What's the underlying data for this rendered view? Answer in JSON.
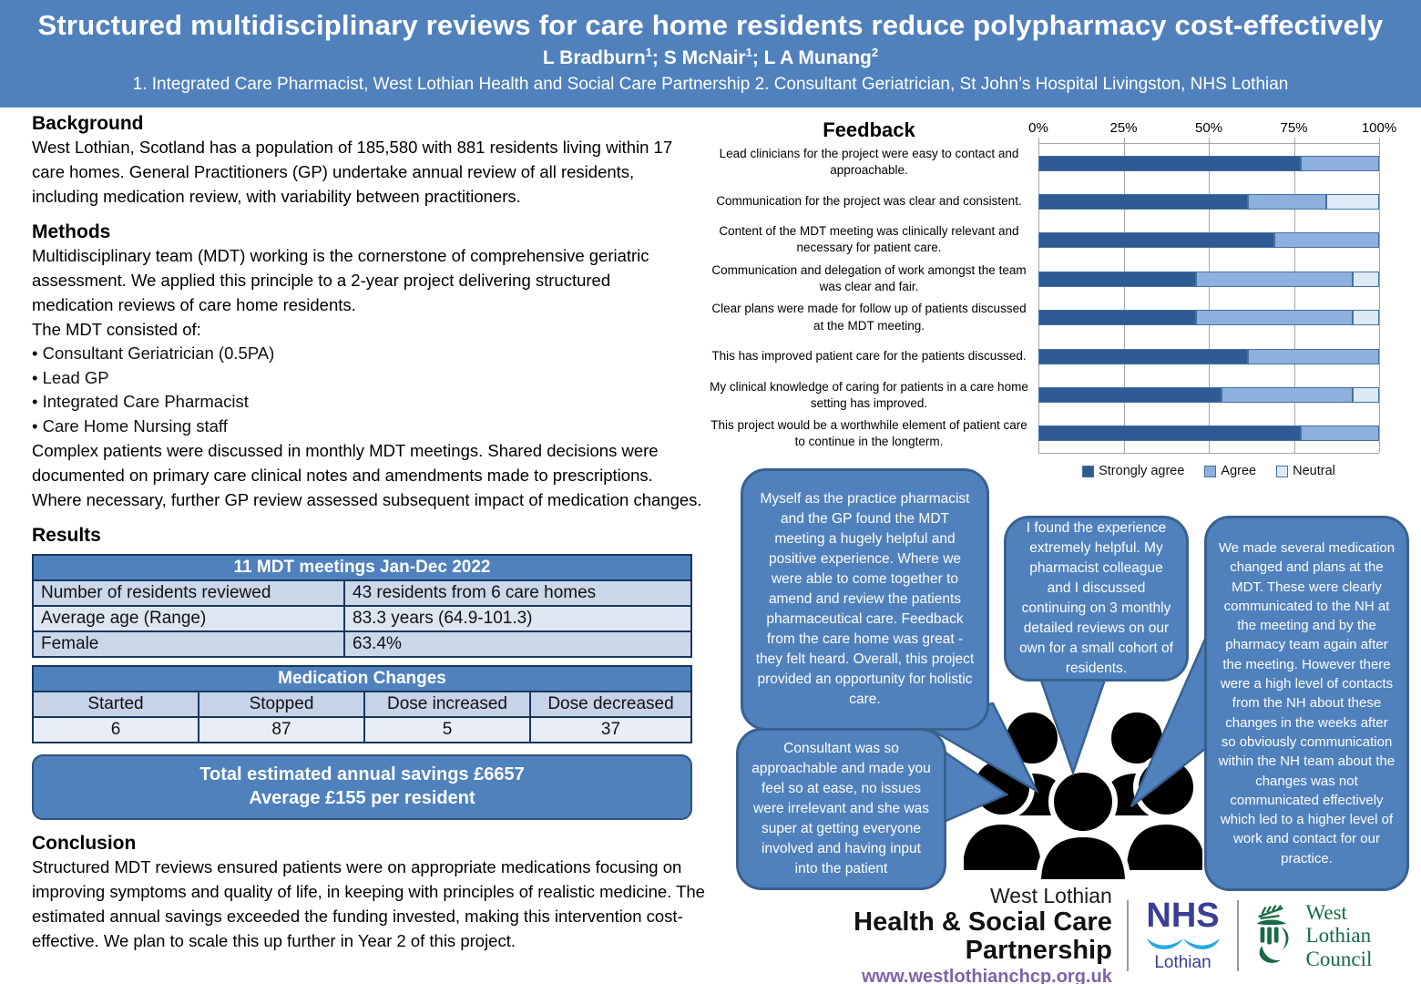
{
  "header": {
    "title": "Structured multidisciplinary reviews for care home residents reduce polypharmacy cost-effectively",
    "authors": [
      {
        "text": "L Bradburn",
        "sup": "1",
        "tail": "; "
      },
      {
        "text": "S McNair",
        "sup": "1",
        "tail": "; "
      },
      {
        "text": "L A Munang",
        "sup": "2",
        "tail": ""
      }
    ],
    "affiliations": "1. Integrated Care Pharmacist, West Lothian Health and Social Care Partnership 2. Consultant Geriatrician, St John’s Hospital Livingston, NHS Lothian"
  },
  "background": {
    "heading": "Background",
    "body": "West Lothian, Scotland has a population of 185,580 with 881 residents living within 17 care homes. General Practitioners (GP) undertake annual review of all residents, including medication review, with variability between practitioners."
  },
  "methods": {
    "heading": "Methods",
    "para1": "Multidisciplinary team (MDT) working is the cornerstone of comprehensive geriatric assessment. We applied this principle to a 2-year project delivering structured medication reviews of care home residents.",
    "list_intro": "The MDT consisted of:",
    "items": [
      "Consultant Geriatrician (0.5PA)",
      "Lead GP",
      "Integrated Care Pharmacist",
      "Care Home Nursing staff"
    ],
    "para2": "Complex patients were discussed in monthly MDT meetings. Shared decisions were documented on primary care clinical notes and amendments made to prescriptions. Where necessary, further GP review assessed subsequent impact of medication changes."
  },
  "results": {
    "heading": "Results",
    "table1": {
      "title": "11 MDT meetings Jan-Dec 2022",
      "rows": [
        [
          "Number of residents reviewed",
          "43 residents from 6 care homes"
        ],
        [
          "Average age (Range)",
          "83.3 years (64.9-101.3)"
        ],
        [
          "Female",
          "63.4%"
        ]
      ]
    },
    "table2": {
      "title": "Medication Changes",
      "columns": [
        "Started",
        "Stopped",
        "Dose increased",
        "Dose decreased"
      ],
      "values": [
        "6",
        "87",
        "5",
        "37"
      ]
    },
    "savings_line1": "Total estimated annual savings £6657",
    "savings_line2": "Average £155 per resident"
  },
  "conclusion": {
    "heading": "Conclusion",
    "body": "Structured MDT reviews ensured patients were on appropriate medications focusing on improving symptoms and quality of life, in keeping with principles of realistic medicine. The estimated annual savings exceeded the funding invested, making this intervention cost-effective. We plan to scale this up further in Year 2 of this project."
  },
  "chart_data": {
    "type": "bar",
    "orientation": "horizontal-stacked",
    "title": "Feedback",
    "x_ticks": [
      "0%",
      "25%",
      "50%",
      "75%",
      "100%"
    ],
    "xlim": [
      0,
      100
    ],
    "grid": true,
    "legend_position": "bottom",
    "categories": [
      "Lead clinicians for the project were easy to contact and approachable.",
      "Communication for the project was clear and consistent.",
      "Content of the MDT meeting was clinically relevant and necessary for patient care.",
      "Communication and delegation of work amongst the team was clear and fair.",
      "Clear plans were made for follow up of patients discussed at the MDT meeting.",
      "This has improved patient care for the patients discussed.",
      "My clinical knowledge of caring for patients in a care home setting has improved.",
      "This project would be a worthwhile element of patient care to continue in the longterm."
    ],
    "series": [
      {
        "name": "Strongly agree",
        "values": [
          76.9,
          61.5,
          69.2,
          46.2,
          46.2,
          61.5,
          53.8,
          76.9
        ]
      },
      {
        "name": "Agree",
        "values": [
          23.1,
          23.1,
          30.8,
          46.1,
          46.1,
          38.5,
          38.5,
          23.1
        ]
      },
      {
        "name": "Neutral",
        "values": [
          0,
          15.4,
          0,
          7.7,
          7.7,
          0,
          7.7,
          0
        ]
      }
    ],
    "legend": [
      {
        "label": "Strongly agree",
        "color": "#2E5B94"
      },
      {
        "label": "Agree",
        "color": "#8EB0DE"
      },
      {
        "label": "Neutral",
        "color": "#DCE9F6"
      }
    ]
  },
  "quotes": [
    {
      "text": "Myself as the practice pharmacist and the GP found the MDT meeting a hugely helpful and positive experience. Where we were able to come together to amend and review the patients pharmaceutical care. Feedback from the care home was great - they felt heard. Overall, this project provided an opportunity for holistic care."
    },
    {
      "text": "I found the experience extremely helpful. My pharmacist colleague and I discussed continuing on 3 monthly detailed reviews on our own for a small cohort of residents."
    },
    {
      "text": "We made several medication changed and plans at the MDT. These were clearly communicated to the NH at the meeting and by the pharmacy team again after the meeting. However there were a high level of contacts from the NH about these changes in the weeks after so obviously communication within the NH team about the changes was not communicated effectively which led to a higher level of work and contact for our practice."
    },
    {
      "text": "Consultant was so approachable and made you feel so at ease, no issues were irrelevant and she was super at getting everyone involved and having input into the patient"
    }
  ],
  "footer": {
    "partnership_top": "West Lothian",
    "partnership_main": "Health & Social Care Partnership",
    "partnership_url": "www.westlothianchcp.org.uk",
    "nhs": "NHS",
    "nhs_region": "Lothian",
    "council_line1": "West Lothian",
    "council_line2": "Council"
  },
  "icons": {
    "crowd": "people-group-icon",
    "nhs_wave": "nhs-wave-icon",
    "council_emblem": "thistle-icon"
  },
  "colors": {
    "header_blue": "#5081BD",
    "accent_blue": "#4F81BD",
    "bubble_border": "#38618F",
    "strongly_agree": "#2E5B94",
    "agree": "#8EB0DE",
    "neutral": "#DCE9F6",
    "url_purple": "#7D64A8",
    "nhs_blue": "#3B3E94",
    "nhs_wave_blue": "#27AAE1",
    "council_green": "#176B45"
  }
}
